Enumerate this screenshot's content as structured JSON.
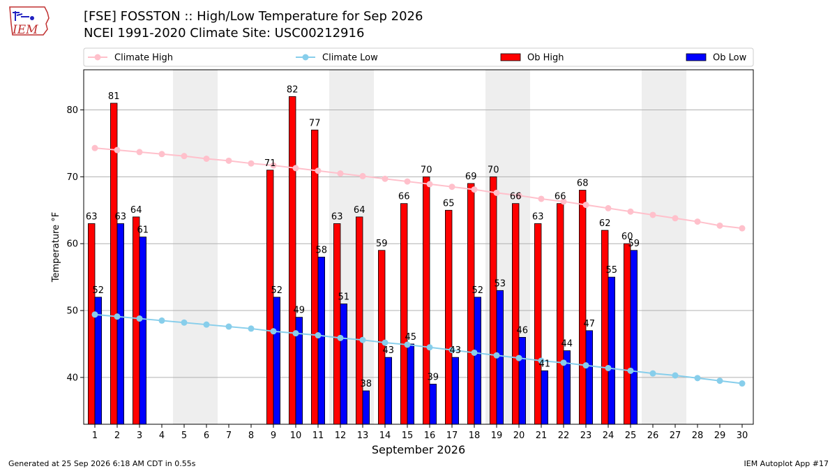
{
  "header": {
    "title_line1": "[FSE] FOSSTON :: High/Low Temperature for Sep 2026",
    "title_line2": "NCEI 1991-2020 Climate Site: USC00212916",
    "logo_text": "IEM"
  },
  "footer": {
    "generated": "Generated at 25 Sep 2026 6:18 AM CDT in 0.55s",
    "app": "IEM Autoplot App #17"
  },
  "colors": {
    "ob_high": "#ff0000",
    "ob_low": "#0000ff",
    "climate_high": "#ffc0cb",
    "climate_low": "#87ceeb",
    "weekend_band": "#eeeeee",
    "grid": "#b0b0b0"
  },
  "chart_data": {
    "type": "bar",
    "xlabel": "September 2026",
    "ylabel": "Temperature °F",
    "ylim": [
      33,
      86
    ],
    "xlim": [
      0.5,
      30.5
    ],
    "yticks": [
      40,
      50,
      60,
      70,
      80
    ],
    "grid": "horizontal",
    "legend_placement": "top, above plot",
    "legend": [
      "Climate High",
      "Climate Low",
      "Ob High",
      "Ob Low"
    ],
    "categories": [
      "1",
      "2",
      "3",
      "4",
      "5",
      "6",
      "7",
      "8",
      "9",
      "10",
      "11",
      "12",
      "13",
      "14",
      "15",
      "16",
      "17",
      "18",
      "19",
      "20",
      "21",
      "22",
      "23",
      "24",
      "25",
      "26",
      "27",
      "28",
      "29",
      "30"
    ],
    "weekend_bands": [
      [
        4.5,
        6.5
      ],
      [
        11.5,
        13.5
      ],
      [
        18.5,
        20.5
      ],
      [
        25.5,
        27.5
      ]
    ],
    "series": [
      {
        "name": "Ob High",
        "kind": "bar",
        "values": [
          63,
          81,
          64,
          null,
          null,
          null,
          null,
          null,
          71,
          82,
          77,
          63,
          64,
          59,
          66,
          70,
          65,
          69,
          70,
          66,
          63,
          66,
          68,
          62,
          60,
          null,
          null,
          null,
          null,
          null
        ]
      },
      {
        "name": "Ob Low",
        "kind": "bar",
        "values": [
          52,
          63,
          61,
          null,
          null,
          null,
          null,
          null,
          52,
          49,
          58,
          51,
          38,
          43,
          45,
          39,
          43,
          52,
          53,
          46,
          41,
          44,
          47,
          55,
          59,
          null,
          null,
          null,
          null,
          null
        ]
      },
      {
        "name": "Climate High",
        "kind": "line",
        "values": [
          74.3,
          74.0,
          73.7,
          73.4,
          73.1,
          72.7,
          72.4,
          72.0,
          71.7,
          71.3,
          70.9,
          70.5,
          70.1,
          69.7,
          69.3,
          68.9,
          68.5,
          68.1,
          67.6,
          67.2,
          66.7,
          66.3,
          65.8,
          65.3,
          64.8,
          64.3,
          63.8,
          63.3,
          62.7,
          62.3
        ]
      },
      {
        "name": "Climate Low",
        "kind": "line",
        "values": [
          49.4,
          49.1,
          48.8,
          48.5,
          48.2,
          47.9,
          47.6,
          47.3,
          46.9,
          46.6,
          46.3,
          45.9,
          45.6,
          45.2,
          44.9,
          44.5,
          44.1,
          43.7,
          43.3,
          42.9,
          42.5,
          42.2,
          41.8,
          41.4,
          41.0,
          40.6,
          40.3,
          39.9,
          39.5,
          39.1
        ]
      }
    ]
  }
}
